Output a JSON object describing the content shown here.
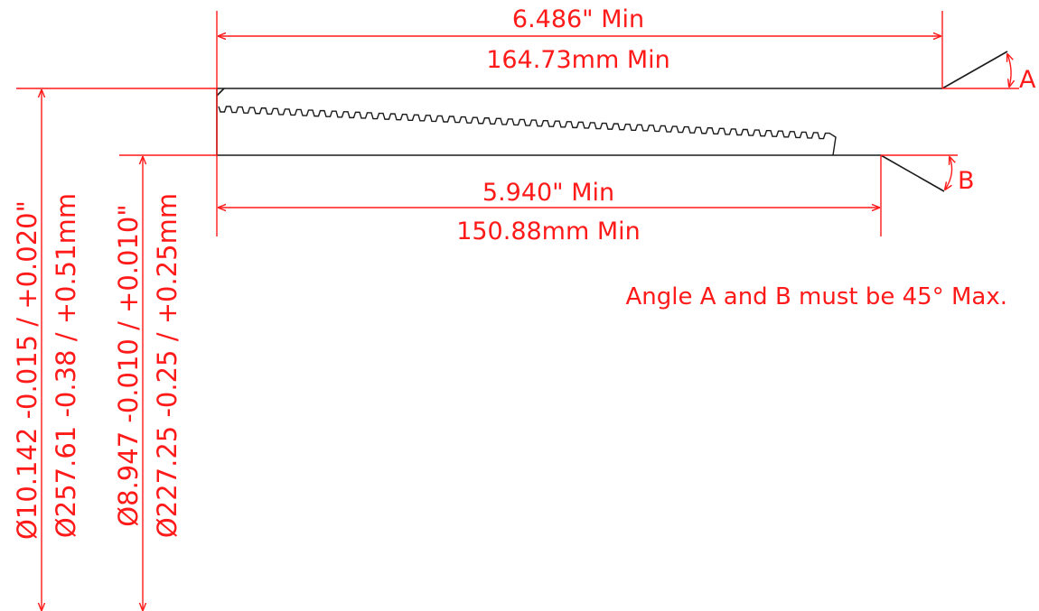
{
  "colors": {
    "dimension": "#ff1a1a",
    "outline": "#1a1a1a",
    "background": "#ffffff"
  },
  "dimensions": {
    "top_length_in": "6.486\" Min",
    "top_length_mm": "164.73mm Min",
    "bottom_length_in": "5.940\" Min",
    "bottom_length_mm": "150.88mm Min",
    "angle_a_label": "A",
    "angle_b_label": "B",
    "outer_dia_in": "Ø10.142 -0.015 / +0.020\"",
    "outer_dia_mm": "Ø257.61 -0.38 / +0.51mm",
    "inner_dia_in": "Ø8.947 -0.010 / +0.010\"",
    "inner_dia_mm": "Ø227.25 -0.25 / +0.25mm"
  },
  "note": "Angle A and B must be 45° Max."
}
